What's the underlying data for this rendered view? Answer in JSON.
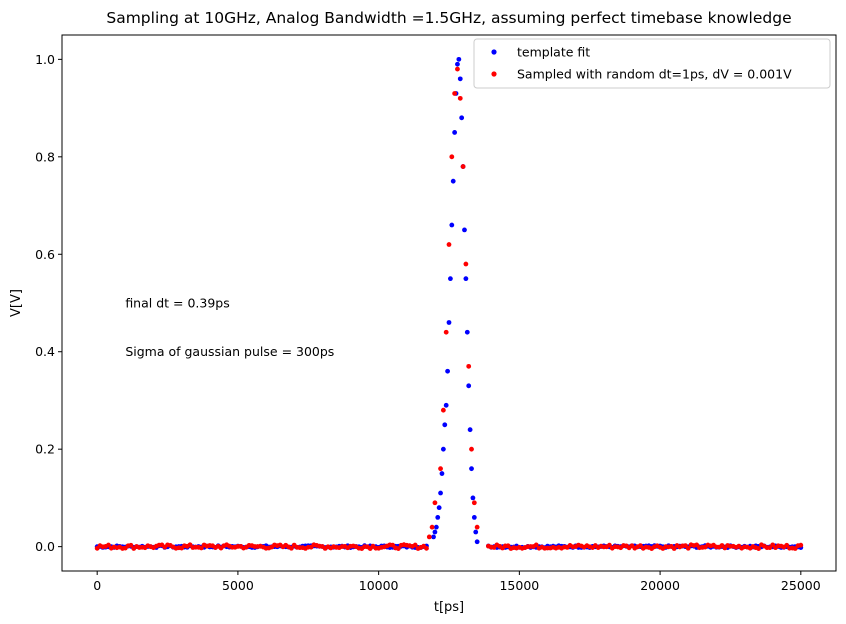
{
  "chart_data": {
    "type": "scatter",
    "title": "Sampling at 10GHz, Analog Bandwidth =1.5GHz, assuming perfect timebase knowledge",
    "xlabel": "t[ps]",
    "ylabel": "V[V]",
    "xlim": [
      -1250,
      26250
    ],
    "ylim": [
      -0.05,
      1.05
    ],
    "xticks": [
      0,
      5000,
      10000,
      15000,
      20000,
      25000
    ],
    "yticks": [
      0.0,
      0.2,
      0.4,
      0.6,
      0.8,
      1.0
    ],
    "xtick_labels": [
      "0",
      "5000",
      "10000",
      "15000",
      "20000",
      "25000"
    ],
    "ytick_labels": [
      "0.0",
      "0.2",
      "0.4",
      "0.6",
      "0.8",
      "1.0"
    ],
    "grid": false,
    "legend_position": "top-right",
    "pulse_center_ps": 12810,
    "pulse_sigma_ps": 300,
    "baseline_x_range": [
      0,
      25000
    ],
    "series": [
      {
        "name": "template fit",
        "color": "#0000ff",
        "marker": "circle",
        "baseline_step_ps": 100,
        "peak_points": [
          [
            11950,
            0.02
          ],
          [
            12000,
            0.03
          ],
          [
            12050,
            0.04
          ],
          [
            12100,
            0.06
          ],
          [
            12150,
            0.08
          ],
          [
            12200,
            0.11
          ],
          [
            12250,
            0.15
          ],
          [
            12300,
            0.2
          ],
          [
            12350,
            0.25
          ],
          [
            12400,
            0.29
          ],
          [
            12450,
            0.36
          ],
          [
            12500,
            0.46
          ],
          [
            12550,
            0.55
          ],
          [
            12600,
            0.66
          ],
          [
            12650,
            0.75
          ],
          [
            12700,
            0.85
          ],
          [
            12750,
            0.93
          ],
          [
            12800,
            0.99
          ],
          [
            12850,
            1.0
          ],
          [
            12900,
            0.96
          ],
          [
            12950,
            0.88
          ],
          [
            13000,
            0.78
          ],
          [
            13050,
            0.65
          ],
          [
            13100,
            0.55
          ],
          [
            13150,
            0.44
          ],
          [
            13200,
            0.33
          ],
          [
            13250,
            0.24
          ],
          [
            13300,
            0.16
          ],
          [
            13350,
            0.1
          ],
          [
            13400,
            0.06
          ],
          [
            13450,
            0.03
          ],
          [
            13500,
            0.01
          ]
        ]
      },
      {
        "name": "Sampled with random dt=1ps, dV = 0.001V",
        "color": "#ff0000",
        "marker": "circle",
        "baseline_step_ps": 100,
        "peak_points": [
          [
            11800,
            0.02
          ],
          [
            11900,
            0.04
          ],
          [
            12000,
            0.09
          ],
          [
            12200,
            0.16
          ],
          [
            12300,
            0.28
          ],
          [
            12400,
            0.44
          ],
          [
            12500,
            0.62
          ],
          [
            12600,
            0.8
          ],
          [
            12700,
            0.93
          ],
          [
            12800,
            0.98
          ],
          [
            12900,
            0.92
          ],
          [
            13000,
            0.78
          ],
          [
            13100,
            0.58
          ],
          [
            13200,
            0.37
          ],
          [
            13300,
            0.2
          ],
          [
            13400,
            0.09
          ],
          [
            13500,
            0.04
          ]
        ]
      }
    ],
    "annotations": [
      {
        "text": "final dt = 0.39ps",
        "x": 1000,
        "y": 0.5
      },
      {
        "text": "Sigma of gaussian pulse = 300ps",
        "x": 1000,
        "y": 0.4
      }
    ]
  }
}
